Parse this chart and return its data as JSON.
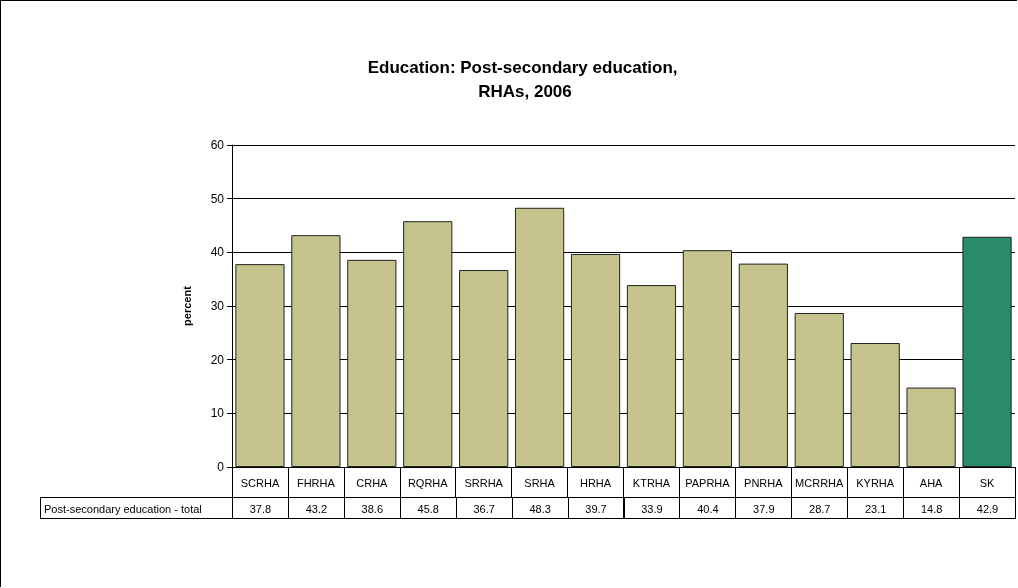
{
  "chart_data": {
    "type": "bar",
    "title": "Education: Post-secondary education, RHAs, 2006",
    "ylabel": "percent",
    "categories": [
      "SCRHA",
      "FHRHA",
      "CRHA",
      "RQRHA",
      "SRRHA",
      "SRHA",
      "HRHA",
      "KTRHA",
      "PAPRHA",
      "PNRHA",
      "MCRRHA",
      "KYRHA",
      "AHA",
      "SK"
    ],
    "series": [
      {
        "name": "Post-secondary education - total",
        "values": [
          37.8,
          43.2,
          38.6,
          45.8,
          36.7,
          48.3,
          39.7,
          33.9,
          40.4,
          37.9,
          28.7,
          23.1,
          14.8,
          42.9
        ],
        "colors": [
          "#c4c48c",
          "#c4c48c",
          "#c4c48c",
          "#c4c48c",
          "#c4c48c",
          "#c4c48c",
          "#c4c48c",
          "#c4c48c",
          "#c4c48c",
          "#c4c48c",
          "#c4c48c",
          "#c4c48c",
          "#c4c48c",
          "#2a8a6c"
        ]
      }
    ],
    "ylim": [
      0,
      60
    ],
    "yticks": [
      0,
      10,
      20,
      30,
      40,
      50,
      60
    ],
    "grid": "y",
    "legend": false,
    "data_labels": true
  }
}
